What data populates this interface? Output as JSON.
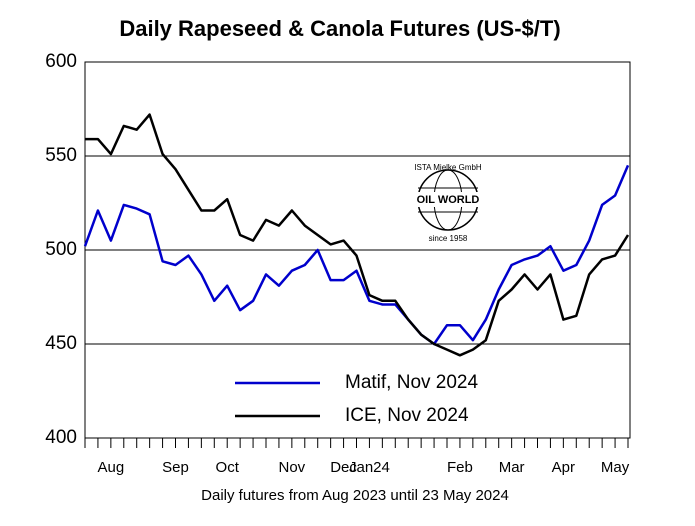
{
  "chart_data": {
    "type": "line",
    "title": "Daily Rapeseed & Canola Futures (US-$/T)",
    "x_label": "Daily futures from Aug 2023 until 23 May 2024",
    "categories": [
      null,
      null,
      "Aug",
      null,
      null,
      null,
      null,
      "Sep",
      null,
      null,
      null,
      "Oct",
      null,
      null,
      null,
      null,
      "Nov",
      null,
      null,
      null,
      "Dec",
      null,
      "Jan24",
      null,
      null,
      null,
      null,
      null,
      null,
      "Feb",
      null,
      null,
      null,
      "Mar",
      null,
      null,
      null,
      "Apr",
      null,
      null,
      null,
      "May",
      null
    ],
    "series": [
      {
        "name": "Matif, Nov 2024",
        "color": "#0000cc",
        "values": [
          502,
          521,
          505,
          524,
          522,
          519,
          494,
          492,
          497,
          487,
          473,
          481,
          468,
          473,
          487,
          481,
          489,
          492,
          500,
          484,
          484,
          489,
          473,
          471,
          471,
          463,
          455,
          450,
          460,
          460,
          452,
          463,
          479,
          492,
          495,
          497,
          502,
          489,
          492,
          505,
          524,
          529,
          545
        ]
      },
      {
        "name": "ICE, Nov 2024",
        "color": "#000000",
        "values": [
          559,
          559,
          551,
          566,
          564,
          572,
          551,
          543,
          532,
          521,
          521,
          527,
          508,
          505,
          516,
          513,
          521,
          513,
          508,
          503,
          505,
          497,
          476,
          473,
          473,
          463,
          455,
          450,
          447,
          444,
          447,
          452,
          473,
          479,
          487,
          479,
          487,
          463,
          465,
          487,
          495,
          497,
          508
        ]
      }
    ],
    "ylim": [
      400,
      600
    ],
    "yticks": [
      400,
      450,
      500,
      550,
      600
    ],
    "grid": true,
    "legend": "lower-left",
    "logo": {
      "top": "ISTA Mielke GmbH",
      "name": "OIL WORLD",
      "bottom": "since 1958"
    }
  }
}
